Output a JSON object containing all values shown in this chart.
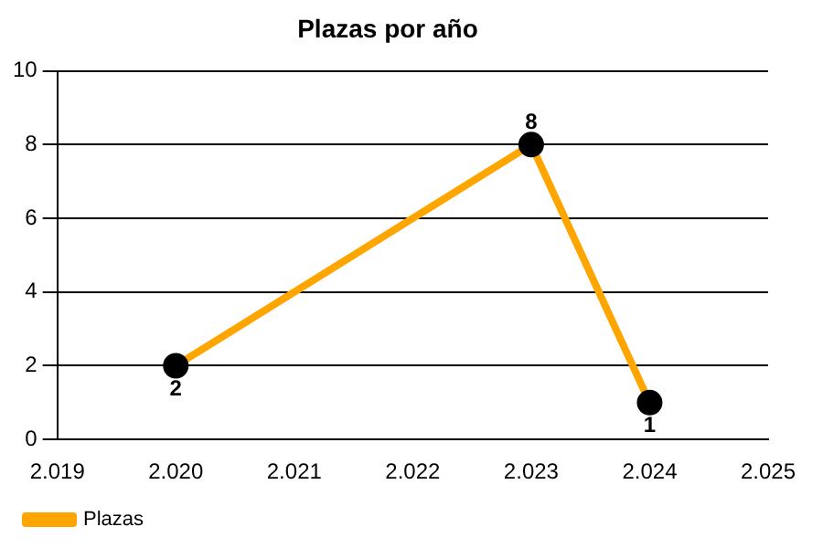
{
  "chart_data": {
    "type": "line",
    "title": "Plazas por año",
    "x": [
      2020,
      2023,
      2024
    ],
    "series": [
      {
        "name": "Plazas",
        "color": "#ffa500",
        "values": [
          2,
          8,
          1
        ]
      }
    ],
    "xlim": [
      2019,
      2025
    ],
    "xticks": [
      {
        "value": 2019,
        "label": "2.019"
      },
      {
        "value": 2020,
        "label": "2.020"
      },
      {
        "value": 2021,
        "label": "2.021"
      },
      {
        "value": 2022,
        "label": "2.022"
      },
      {
        "value": 2023,
        "label": "2.023"
      },
      {
        "value": 2024,
        "label": "2.024"
      },
      {
        "value": 2025,
        "label": "2.025"
      }
    ],
    "ylim": [
      0,
      10
    ],
    "yticks": [
      0,
      2,
      4,
      6,
      8,
      10
    ],
    "grid": "y",
    "legend": "bottom left",
    "marker": "circle",
    "line_style": "solid",
    "data_labels": true
  }
}
